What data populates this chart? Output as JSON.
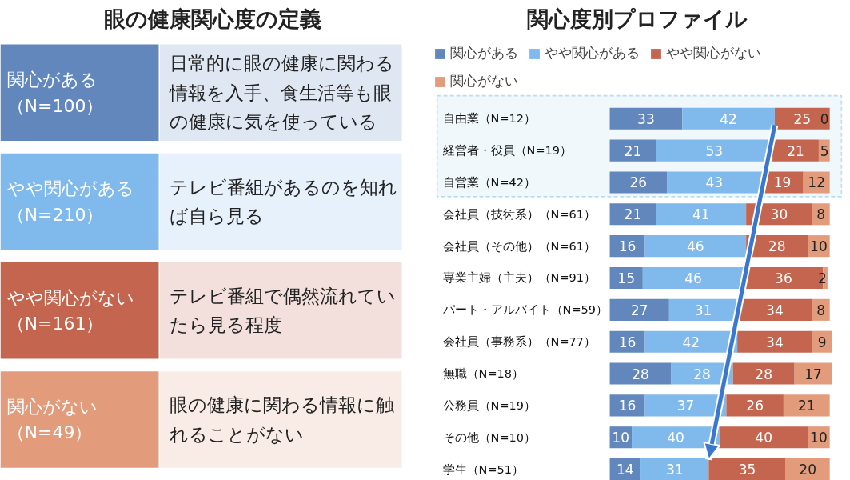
{
  "chart_data": [
    {
      "type": "other",
      "title": "眼の健康関心度の定義",
      "categories": [
        "関心がある（N=100）",
        "やや関心がある（N=210）",
        "やや関心がない（N=161）",
        "関心がない（N=49）"
      ],
      "annotations": [
        "日常的に眼の健康に関わる情報を入手、食生活等も眼の健康に気を使っている",
        "テレビ番組があるのを知れば自ら見る",
        "テレビ番組で偶然流れていたら見る程度",
        "眼の健康に関わる情報に触れることがない"
      ],
      "colors": [
        "#6187bd",
        "#80b9eb",
        "#c4664f",
        "#e29c7b"
      ]
    },
    {
      "type": "bar",
      "title": "関心度別プロファイル",
      "orientation": "horizontal",
      "stacked": true,
      "data_labels": true,
      "legend": "top",
      "tick_labels": "y",
      "categories": [
        "自由業（N=12）",
        "経営者・役員（N=19）",
        "自営業（N=42）",
        "会社員（技術系）（N=61）",
        "会社員（その他）（N=61）",
        "専業主婦（主夫）（N=91）",
        "パート・アルバイト（N=59）",
        "会社員（事務系）（N=77）",
        "無職（N=18）",
        "公務員（N=19）",
        "その他（N=10）",
        "学生（N=51）"
      ],
      "series": [
        {
          "name": "関心がある",
          "color": "#6187bd",
          "values": [
            33,
            21,
            26,
            21,
            16,
            15,
            27,
            16,
            28,
            16,
            10,
            14
          ]
        },
        {
          "name": "やや関心がある",
          "color": "#80b9eb",
          "values": [
            42,
            53,
            43,
            41,
            46,
            46,
            31,
            42,
            28,
            37,
            40,
            31
          ]
        },
        {
          "name": "やや関心がない",
          "color": "#c4664f",
          "values": [
            25,
            21,
            19,
            30,
            28,
            36,
            34,
            34,
            28,
            26,
            40,
            35
          ]
        },
        {
          "name": "関心がない",
          "color": "#e29c7b",
          "values": [
            0,
            5,
            12,
            8,
            10,
            2,
            8,
            9,
            17,
            21,
            10,
            20
          ]
        }
      ],
      "bands": [
        {
          "axis": "y",
          "from": "自由業（N=12）",
          "to": "自営業（N=42）",
          "color": "#2f9bd6"
        }
      ]
    }
  ]
}
